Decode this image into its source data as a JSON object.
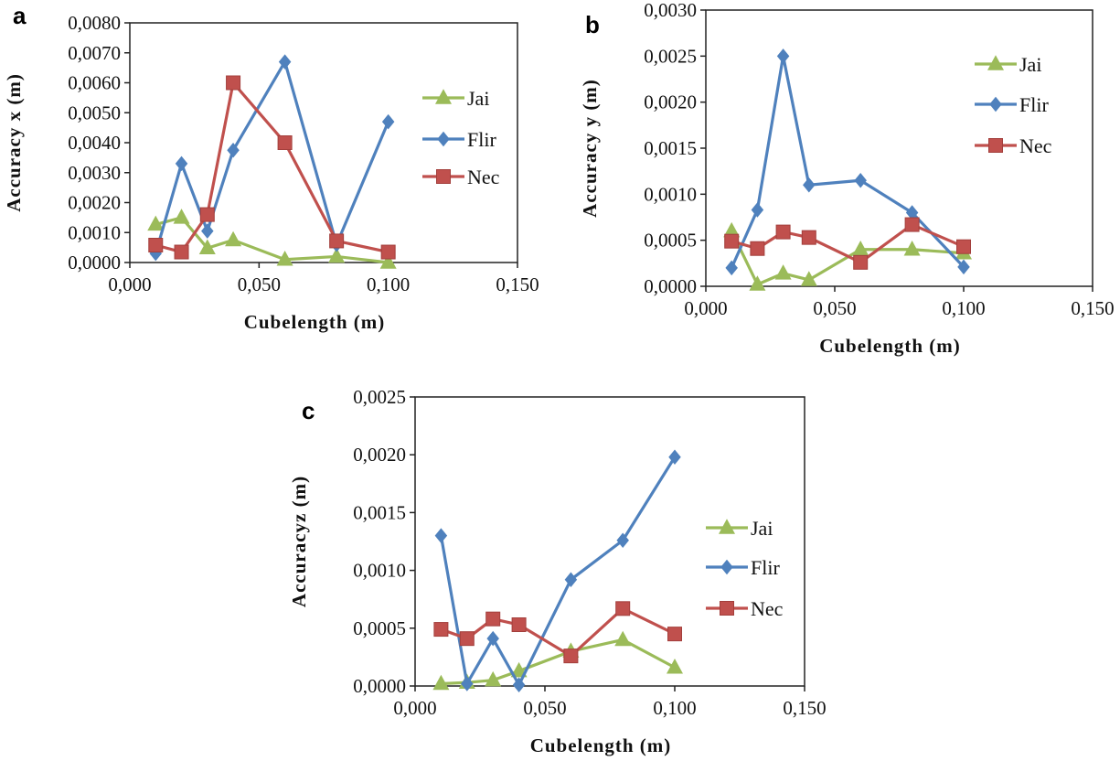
{
  "colors": {
    "Jai": "#9bbb59",
    "Flir": "#4f81bd",
    "Nec": "#c0504d"
  },
  "markers": {
    "Jai": "triangle",
    "Flir": "diamond",
    "Nec": "square"
  },
  "chart_data": [
    {
      "panel": "a",
      "type": "line",
      "xlabel": "Cubelength (m)",
      "ylabel": "Accuracy x (m)",
      "xlim": [
        0,
        0.15
      ],
      "ylim": [
        0,
        0.008
      ],
      "xticks": [
        0,
        0.05,
        0.1,
        0.15
      ],
      "xtick_labels": [
        "0,000",
        "0,050",
        "0,100",
        "0,150"
      ],
      "yticks": [
        0,
        0.001,
        0.002,
        0.003,
        0.004,
        0.005,
        0.006,
        0.007,
        0.008
      ],
      "ytick_labels": [
        "0,0000",
        "0,0010",
        "0,0020",
        "0,0030",
        "0,0040",
        "0,0050",
        "0,0060",
        "0,0070",
        "0,0080"
      ],
      "legend": "right",
      "grid": false,
      "x": [
        0.01,
        0.02,
        0.03,
        0.04,
        0.06,
        0.08,
        0.1
      ],
      "series": [
        {
          "name": "Jai",
          "values": [
            0.00127,
            0.0015,
            0.00048,
            0.00075,
            0.0001,
            0.0002,
            0.0
          ]
        },
        {
          "name": "Flir",
          "values": [
            0.0003,
            0.0033,
            0.00105,
            0.00375,
            0.0067,
            0.0006,
            0.0047
          ]
        },
        {
          "name": "Nec",
          "values": [
            0.00058,
            0.00035,
            0.0016,
            0.006,
            0.004,
            0.00072,
            0.00035
          ]
        }
      ]
    },
    {
      "panel": "b",
      "type": "line",
      "xlabel": "Cubelength (m)",
      "ylabel": "Accuracy y (m)",
      "xlim": [
        0,
        0.15
      ],
      "ylim": [
        0,
        0.003
      ],
      "xticks": [
        0,
        0.05,
        0.1,
        0.15
      ],
      "xtick_labels": [
        "0,000",
        "0,050",
        "0,100",
        "0,150"
      ],
      "yticks": [
        0,
        0.0005,
        0.001,
        0.0015,
        0.002,
        0.0025,
        0.003
      ],
      "ytick_labels": [
        "0,0000",
        "0,0005",
        "0,0010",
        "0,0015",
        "0,0020",
        "0,0025",
        "0,0030"
      ],
      "legend": "right",
      "grid": false,
      "x": [
        0.01,
        0.02,
        0.03,
        0.04,
        0.06,
        0.08,
        0.1
      ],
      "series": [
        {
          "name": "Jai",
          "values": [
            0.0006,
            2e-05,
            0.00014,
            7e-05,
            0.0004,
            0.0004,
            0.00036
          ]
        },
        {
          "name": "Flir",
          "values": [
            0.0002,
            0.00083,
            0.0025,
            0.0011,
            0.00115,
            0.0008,
            0.00021
          ]
        },
        {
          "name": "Nec",
          "values": [
            0.00049,
            0.00041,
            0.00059,
            0.00053,
            0.00026,
            0.00067,
            0.00043
          ]
        }
      ]
    },
    {
      "panel": "c",
      "type": "line",
      "xlabel": "Cubelength (m)",
      "ylabel": "Accuracyz (m)",
      "xlim": [
        0,
        0.15
      ],
      "ylim": [
        0,
        0.0025
      ],
      "xticks": [
        0,
        0.05,
        0.1,
        0.15
      ],
      "xtick_labels": [
        "0,000",
        "0,050",
        "0,100",
        "0,150"
      ],
      "yticks": [
        0,
        0.0005,
        0.001,
        0.0015,
        0.002,
        0.0025
      ],
      "ytick_labels": [
        "0,0000",
        "0,0005",
        "0,0010",
        "0,0015",
        "0,0020",
        "0,0025"
      ],
      "legend": "right",
      "grid": false,
      "x": [
        0.01,
        0.02,
        0.03,
        0.04,
        0.06,
        0.08,
        0.1
      ],
      "series": [
        {
          "name": "Jai",
          "values": [
            2e-05,
            3e-05,
            5e-05,
            0.00013,
            0.0003,
            0.0004,
            0.00016
          ]
        },
        {
          "name": "Flir",
          "values": [
            0.0013,
            2e-05,
            0.00041,
            1e-05,
            0.00092,
            0.00126,
            0.00198
          ]
        },
        {
          "name": "Nec",
          "values": [
            0.00049,
            0.00041,
            0.00058,
            0.00053,
            0.00026,
            0.00067,
            0.00045
          ]
        }
      ]
    }
  ]
}
